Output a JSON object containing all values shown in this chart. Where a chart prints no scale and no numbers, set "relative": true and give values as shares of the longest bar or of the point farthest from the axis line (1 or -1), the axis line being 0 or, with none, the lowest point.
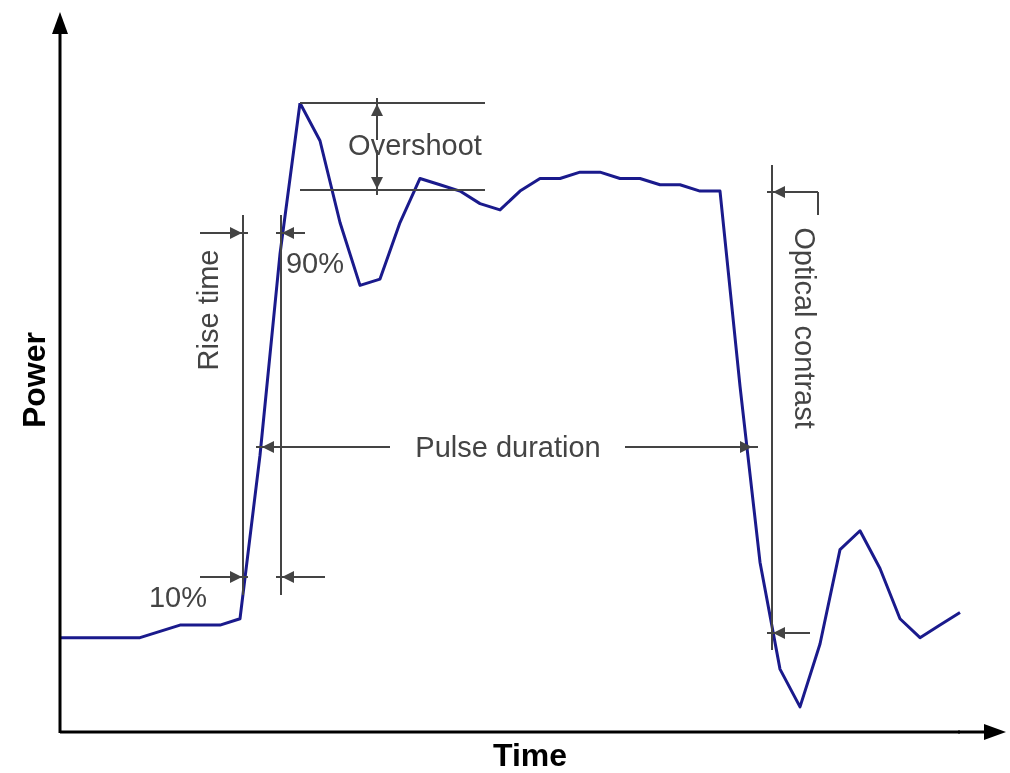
{
  "chart_data": {
    "type": "line",
    "relative": true,
    "xlabel": "Time",
    "ylabel": "Power",
    "categories": [
      null,
      null,
      null,
      null,
      null,
      null,
      null,
      null,
      null,
      null,
      null,
      null,
      null,
      null,
      null,
      null,
      null,
      null,
      null,
      null,
      null,
      null,
      null,
      null,
      null,
      null,
      null,
      null,
      null,
      null,
      null,
      null,
      null,
      null,
      null,
      null,
      null,
      null,
      null,
      null,
      null,
      null,
      null,
      null,
      null,
      null
    ],
    "series": [
      {
        "color": "#1a1a8c",
        "values": [
          0.15,
          0.15,
          0.15,
          0.15,
          0.15,
          0.16,
          0.17,
          0.17,
          0.17,
          0.18,
          0.44,
          0.76,
          1,
          0.94,
          0.81,
          0.71,
          0.72,
          0.81,
          0.88,
          0.87,
          0.86,
          0.84,
          0.83,
          0.86,
          0.88,
          0.88,
          0.89,
          0.89,
          0.88,
          0.88,
          0.87,
          0.87,
          0.86,
          0.86,
          0.55,
          0.27,
          0.1,
          0.04,
          0.14,
          0.29,
          0.32,
          0.26,
          0.18,
          0.15,
          0.17,
          0.19
        ]
      }
    ],
    "annotations": [
      "Overshoot",
      "Rise time",
      "90%",
      "10%",
      "Pulse duration",
      "Optical contrast"
    ],
    "grid": false,
    "legend": false,
    "marker": "none",
    "line_style": "solid"
  }
}
